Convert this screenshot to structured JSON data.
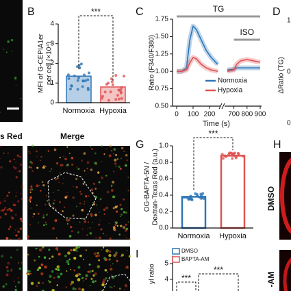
{
  "panels": {
    "left": {
      "labels": [
        "s Red",
        "Merge"
      ]
    },
    "D": {
      "letter": "D",
      "ylabel": "ΔRatio (TG)",
      "yticks": [
        "1.",
        "0.",
        "0."
      ]
    },
    "H": {
      "letter": "H",
      "labels": [
        "DMSO",
        "-AM"
      ]
    }
  },
  "chart_data": [
    {
      "type": "bar",
      "letter": "B",
      "ylabel": [
        "MFI of G-CEPIA1er",
        "per cell (×10⁴)"
      ],
      "categories": [
        "Normoxia",
        "Hypoxia"
      ],
      "values": [
        1.35,
        0.8
      ],
      "colors": [
        "#2e75b6",
        "#e05252"
      ],
      "style": "filled",
      "ylim": [
        0,
        4
      ],
      "yticks": [
        0,
        1,
        2,
        3,
        4
      ],
      "annotation": "***"
    },
    {
      "type": "line",
      "letter": "C",
      "ylabel": "Ratio (F340/F380)",
      "xlabel": "Time (s)",
      "x": [
        0,
        30,
        60,
        80,
        100,
        120,
        150,
        180,
        210,
        250,
        450,
        650,
        700,
        720,
        750,
        800,
        850,
        900
      ],
      "series": [
        {
          "name": "Normoxia",
          "color": "#2e75b6",
          "values": [
            1.0,
            1.0,
            1.05,
            1.45,
            1.65,
            1.6,
            1.45,
            1.3,
            1.2,
            1.1,
            null,
            1.02,
            1.03,
            1.05,
            1.05,
            1.05,
            1.05,
            1.05
          ]
        },
        {
          "name": "Hypoxia",
          "color": "#e05252",
          "values": [
            1.0,
            1.0,
            1.02,
            1.12,
            1.2,
            1.18,
            1.1,
            1.05,
            1.02,
            1.0,
            null,
            1.0,
            1.02,
            1.1,
            1.15,
            1.17,
            1.15,
            1.13
          ]
        }
      ],
      "xlim": [
        0,
        900
      ],
      "x_break": [
        250,
        650
      ],
      "xticks": [
        0,
        100,
        200,
        700,
        800,
        900
      ],
      "ylim": [
        0.5,
        1.75
      ],
      "yticks": [
        {
          "value": 0.5,
          "label": "0.50"
        },
        {
          "value": 0.75,
          "label": "0.75"
        },
        {
          "value": 1.0,
          "label": "1.00"
        },
        {
          "value": 1.25,
          "label": "1.25"
        },
        {
          "value": 1.5,
          "label": "1.50"
        },
        {
          "value": 1.75,
          "label": "1.75"
        }
      ],
      "annotations": [
        {
          "text": "TG",
          "x": [
            0,
            900
          ]
        },
        {
          "text": "ISO",
          "x": [
            700,
            900
          ]
        }
      ],
      "legend": "lower right"
    },
    {
      "type": "bar",
      "letter": "G",
      "ylabel": [
        "OG-BAPTA-5N /",
        "Dextran-Texas Red (a.u.)"
      ],
      "categories": [
        "Normoxia",
        "Hypoxia"
      ],
      "values": [
        0.38,
        0.88
      ],
      "colors": [
        "#2e75b6",
        "#e05252"
      ],
      "style": "outline",
      "ylim": [
        0,
        1
      ],
      "yticks": [
        {
          "value": 0,
          "label": "0.0"
        },
        {
          "value": 0.2,
          "label": "0.2"
        },
        {
          "value": 0.4,
          "label": "0.4"
        },
        {
          "value": 0.6,
          "label": "0.6"
        },
        {
          "value": 0.8,
          "label": "0.8"
        },
        {
          "value": 1,
          "label": "1.0"
        }
      ],
      "annotation": "***"
    },
    {
      "type": "partial",
      "letter": "I",
      "ylabel": "yl ratio",
      "series": [
        {
          "name": "DMSO",
          "color": "#2e75b6"
        },
        {
          "name": "BAPTA-AM",
          "color": "#e05252"
        }
      ],
      "ylim": [
        0,
        5.5
      ],
      "yticks": [
        4,
        5
      ],
      "annotations": [
        "***",
        "***"
      ]
    }
  ]
}
